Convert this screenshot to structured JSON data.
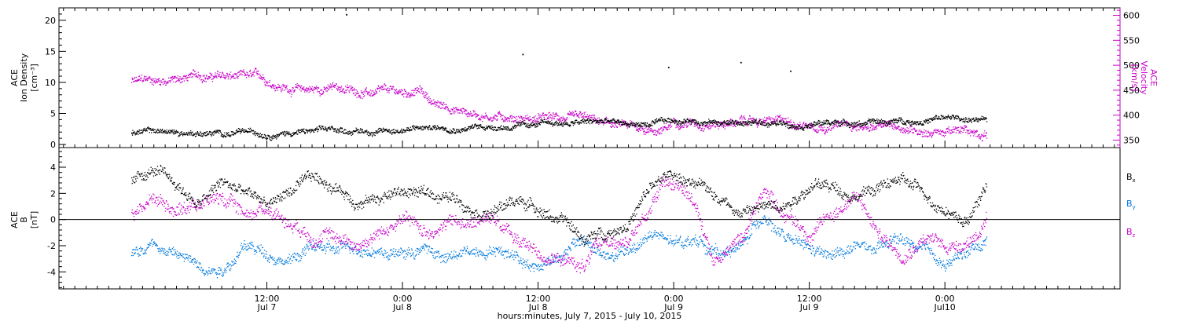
{
  "chart_data": [
    {
      "type": "scatter",
      "panel": "top",
      "left_axis": {
        "label_lines": [
          "ACE",
          "Ion Density",
          "[cm⁻³]"
        ],
        "ylim": [
          -0.5,
          22
        ],
        "major_ticks": [
          0,
          5,
          10,
          15,
          20
        ],
        "tick_labels": [
          "0",
          "5",
          "10",
          "15",
          "20"
        ],
        "color": "#000000"
      },
      "right_axis": {
        "label_lines": [
          "ACE",
          "Velocity",
          "[km/s]"
        ],
        "ylim": [
          335,
          615
        ],
        "major_ticks": [
          350,
          400,
          450,
          500,
          550,
          600
        ],
        "tick_labels": [
          "350",
          "400",
          "450",
          "500",
          "550",
          "600"
        ],
        "color": "#c800c8"
      },
      "series": [
        {
          "axis": "left",
          "color": "#000000",
          "values": [
            [
              0.0,
              2.0
            ],
            [
              2.0,
              2.2
            ],
            [
              4.0,
              1.9
            ],
            [
              6.0,
              2.0
            ],
            [
              8.0,
              1.8
            ],
            [
              10.0,
              1.9
            ],
            [
              12.0,
              1.9
            ],
            [
              14.0,
              2.1
            ],
            [
              16.0,
              2.2
            ],
            [
              18.0,
              2.3
            ],
            [
              20.0,
              2.3
            ],
            [
              22.0,
              2.2
            ],
            [
              24.0,
              2.5
            ],
            [
              26.0,
              2.7
            ],
            [
              28.0,
              2.9
            ],
            [
              30.0,
              2.9
            ],
            [
              32.0,
              3.0
            ],
            [
              34.0,
              3.0
            ],
            [
              36.0,
              3.2
            ],
            [
              38.0,
              3.4
            ],
            [
              40.0,
              3.6
            ],
            [
              42.0,
              3.7
            ],
            [
              44.0,
              3.3
            ],
            [
              46.0,
              3.3
            ],
            [
              48.0,
              3.7
            ],
            [
              50.0,
              4.0
            ],
            [
              52.0,
              3.7
            ],
            [
              54.0,
              3.5
            ],
            [
              56.0,
              3.5
            ],
            [
              58.0,
              3.5
            ],
            [
              60.0,
              3.5
            ],
            [
              62.0,
              3.6
            ],
            [
              64.0,
              3.6
            ],
            [
              66.0,
              3.6
            ],
            [
              68.0,
              3.8
            ],
            [
              70.0,
              4.0
            ],
            [
              72.0,
              4.3
            ],
            [
              74.0,
              4.1
            ],
            [
              75.7,
              3.7
            ]
          ],
          "outliers": [
            [
              19.0,
              21.0
            ],
            [
              34.6,
              14.6
            ],
            [
              53.9,
              13.3
            ],
            [
              58.3,
              11.9
            ],
            [
              47.5,
              12.5
            ]
          ]
        },
        {
          "axis": "right",
          "color": "#c800c8",
          "values": [
            [
              0.0,
              468
            ],
            [
              2.0,
              470
            ],
            [
              4.0,
              473
            ],
            [
              6.0,
              480
            ],
            [
              8.0,
              478
            ],
            [
              10.0,
              475
            ],
            [
              11.5,
              473
            ],
            [
              12.5,
              465
            ],
            [
              14.0,
              455
            ],
            [
              16.0,
              452
            ],
            [
              18.0,
              456
            ],
            [
              19.0,
              452
            ],
            [
              20.0,
              448
            ],
            [
              22.0,
              445
            ],
            [
              24.0,
              442
            ],
            [
              25.5,
              450
            ],
            [
              27.0,
              420
            ],
            [
              28.0,
              416
            ],
            [
              30.0,
              405
            ],
            [
              32.0,
              400
            ],
            [
              34.0,
              398
            ],
            [
              36.0,
              393
            ],
            [
              38.0,
              393
            ],
            [
              40.0,
              388
            ],
            [
              42.0,
              380
            ],
            [
              44.0,
              375
            ],
            [
              46.0,
              372
            ],
            [
              47.5,
              372
            ],
            [
              48.0,
              390
            ],
            [
              50.0,
              388
            ],
            [
              52.0,
              387
            ],
            [
              54.0,
              388
            ],
            [
              56.0,
              388
            ],
            [
              58.0,
              385
            ],
            [
              60.0,
              384
            ],
            [
              62.0,
              383
            ],
            [
              64.0,
              380
            ],
            [
              66.0,
              377
            ],
            [
              68.0,
              375
            ],
            [
              70.0,
              372
            ],
            [
              72.0,
              368
            ],
            [
              74.0,
              366
            ],
            [
              75.7,
              366
            ]
          ]
        }
      ]
    },
    {
      "type": "scatter",
      "panel": "bottom",
      "left_axis": {
        "label_lines": [
          "ACE",
          "B",
          "[nT]"
        ],
        "ylim": [
          -5.3,
          5.5
        ],
        "major_ticks": [
          -4,
          -2,
          0,
          2,
          4
        ],
        "tick_labels": [
          "-4",
          "-2",
          "0",
          "2",
          "4"
        ],
        "color": "#000000"
      },
      "zero_line": 0,
      "legend": {
        "placement": "right",
        "entries": [
          {
            "name": "Bx",
            "base": "B",
            "sub": "x",
            "color": "#000000"
          },
          {
            "name": "By",
            "base": "B",
            "sub": "y",
            "color": "#0078dc"
          },
          {
            "name": "Bz",
            "base": "B",
            "sub": "z",
            "color": "#c800c8"
          }
        ]
      },
      "series": [
        {
          "name": "Bx",
          "color": "#000000",
          "values": [
            [
              0.0,
              3.0
            ],
            [
              2.0,
              3.8
            ],
            [
              4.0,
              2.5
            ],
            [
              6.0,
              1.2
            ],
            [
              8.0,
              2.8
            ],
            [
              10.0,
              2.0
            ],
            [
              12.0,
              1.2
            ],
            [
              14.0,
              2.2
            ],
            [
              16.0,
              3.0
            ],
            [
              18.0,
              2.5
            ],
            [
              20.0,
              1.5
            ],
            [
              22.0,
              1.8
            ],
            [
              24.0,
              2.2
            ],
            [
              26.0,
              2.0
            ],
            [
              28.0,
              1.8
            ],
            [
              30.0,
              1.2
            ],
            [
              32.0,
              0.8
            ],
            [
              34.0,
              1.5
            ],
            [
              36.0,
              1.0
            ],
            [
              38.0,
              0.0
            ],
            [
              40.0,
              -1.5
            ],
            [
              42.0,
              -1.0
            ],
            [
              44.0,
              0.0
            ],
            [
              46.0,
              2.5
            ],
            [
              48.0,
              3.5
            ],
            [
              50.0,
              2.5
            ],
            [
              52.0,
              1.8
            ],
            [
              54.0,
              0.8
            ],
            [
              56.0,
              1.0
            ],
            [
              58.0,
              1.5
            ],
            [
              60.0,
              2.8
            ],
            [
              62.0,
              2.5
            ],
            [
              64.0,
              2.0
            ],
            [
              66.0,
              2.5
            ],
            [
              68.0,
              3.0
            ],
            [
              70.0,
              2.0
            ],
            [
              72.0,
              1.0
            ],
            [
              74.0,
              0.0
            ],
            [
              75.7,
              2.8
            ]
          ]
        },
        {
          "name": "By",
          "color": "#0078dc",
          "values": [
            [
              0.0,
              -2.5
            ],
            [
              2.0,
              -1.5
            ],
            [
              4.0,
              -2.5
            ],
            [
              6.0,
              -3.5
            ],
            [
              8.0,
              -3.5
            ],
            [
              10.0,
              -2.0
            ],
            [
              12.0,
              -2.5
            ],
            [
              14.0,
              -3.0
            ],
            [
              16.0,
              -2.0
            ],
            [
              18.0,
              -2.5
            ],
            [
              20.0,
              -2.0
            ],
            [
              22.0,
              -2.2
            ],
            [
              24.0,
              -2.5
            ],
            [
              26.0,
              -2.2
            ],
            [
              28.0,
              -3.0
            ],
            [
              30.0,
              -2.5
            ],
            [
              32.0,
              -2.0
            ],
            [
              34.0,
              -2.5
            ],
            [
              36.0,
              -3.5
            ],
            [
              38.0,
              -2.5
            ],
            [
              40.0,
              -1.5
            ],
            [
              42.0,
              -3.0
            ],
            [
              44.0,
              -2.5
            ],
            [
              46.0,
              -1.0
            ],
            [
              48.0,
              -2.0
            ],
            [
              50.0,
              -1.5
            ],
            [
              52.0,
              -2.5
            ],
            [
              54.0,
              -2.0
            ],
            [
              56.0,
              0.5
            ],
            [
              58.0,
              -1.5
            ],
            [
              60.0,
              -2.5
            ],
            [
              62.0,
              -3.0
            ],
            [
              64.0,
              -2.0
            ],
            [
              66.0,
              -2.5
            ],
            [
              68.0,
              -1.5
            ],
            [
              70.0,
              -2.5
            ],
            [
              72.0,
              -3.5
            ],
            [
              74.0,
              -2.5
            ],
            [
              75.7,
              -1.5
            ]
          ]
        },
        {
          "name": "Bz",
          "color": "#c800c8",
          "values": [
            [
              0.0,
              0.5
            ],
            [
              2.0,
              1.8
            ],
            [
              4.0,
              1.0
            ],
            [
              6.0,
              1.5
            ],
            [
              8.0,
              1.8
            ],
            [
              10.0,
              0.5
            ],
            [
              12.0,
              1.0
            ],
            [
              14.0,
              0.0
            ],
            [
              16.0,
              -0.8
            ],
            [
              18.0,
              -1.2
            ],
            [
              20.0,
              -1.8
            ],
            [
              22.0,
              -1.0
            ],
            [
              24.0,
              0.0
            ],
            [
              26.0,
              -1.0
            ],
            [
              28.0,
              0.0
            ],
            [
              30.0,
              -0.5
            ],
            [
              32.0,
              0.5
            ],
            [
              34.0,
              -1.5
            ],
            [
              36.0,
              -2.5
            ],
            [
              38.0,
              -3.0
            ],
            [
              40.0,
              -3.5
            ],
            [
              42.0,
              -1.5
            ],
            [
              44.0,
              -2.0
            ],
            [
              46.0,
              1.0
            ],
            [
              47.0,
              3.5
            ],
            [
              48.0,
              2.8
            ],
            [
              50.0,
              1.0
            ],
            [
              51.5,
              -3.0
            ],
            [
              54.0,
              -1.5
            ],
            [
              56.0,
              2.5
            ],
            [
              58.0,
              0.5
            ],
            [
              60.0,
              -1.0
            ],
            [
              62.0,
              0.5
            ],
            [
              64.0,
              2.0
            ],
            [
              66.0,
              -1.0
            ],
            [
              68.0,
              -2.5
            ],
            [
              70.0,
              -1.0
            ],
            [
              72.0,
              -2.0
            ],
            [
              74.0,
              -1.5
            ],
            [
              75.7,
              0.0
            ]
          ]
        }
      ]
    }
  ],
  "x_axis": {
    "xlim": [
      -6.4,
      87.5
    ],
    "unit": "hours since start of Jul 7, 2015",
    "major_ticks": [
      {
        "x": 12,
        "time": "12:00",
        "day": "Jul 7"
      },
      {
        "x": 24,
        "time": "0:00",
        "day": "Jul 8"
      },
      {
        "x": 36,
        "time": "12:00",
        "day": "Jul 8"
      },
      {
        "x": 48,
        "time": "0:00",
        "day": "Jul 9"
      },
      {
        "x": 60,
        "time": "12:00",
        "day": "Jul 9"
      },
      {
        "x": 72,
        "time": "0:00",
        "day": "Jul10"
      }
    ],
    "minor_step_hours": 1,
    "title": "hours:minutes, July  7, 2015 - July 10, 2015"
  }
}
